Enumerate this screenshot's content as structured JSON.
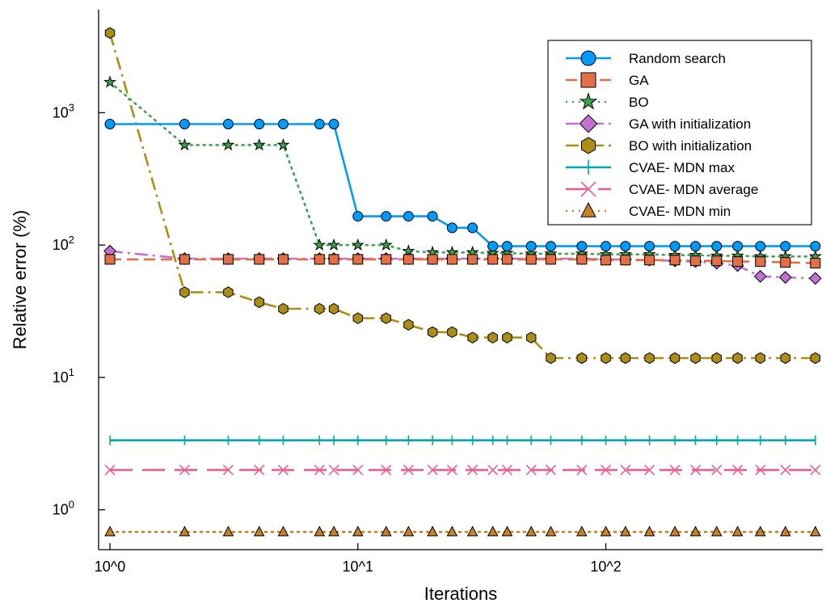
{
  "chart_data": {
    "type": "line",
    "title": "",
    "xlabel": "Iterations",
    "ylabel": "Relative error (%)",
    "xscale": "log",
    "yscale": "log",
    "xlim": [
      0.9,
      750
    ],
    "ylim": [
      0.5,
      6000
    ],
    "x_ticks": [
      {
        "value": 1,
        "label": "10^0"
      },
      {
        "value": 10,
        "label": "10^1"
      },
      {
        "value": 100,
        "label": "10^2"
      }
    ],
    "y_ticks": [
      {
        "value": 1,
        "base": "10",
        "exp": "0"
      },
      {
        "value": 10,
        "base": "10",
        "exp": "1"
      },
      {
        "value": 100,
        "base": "10",
        "exp": "2"
      },
      {
        "value": 1000,
        "base": "10",
        "exp": "3"
      }
    ],
    "grid": false,
    "legend_position": "top-right",
    "x": [
      1,
      2,
      3,
      4,
      5,
      7,
      8,
      10,
      13,
      16,
      20,
      24,
      29,
      35,
      40,
      50,
      60,
      80,
      100,
      120,
      150,
      190,
      230,
      280,
      340,
      420,
      530,
      700
    ],
    "series": [
      {
        "name": "Random search",
        "color": "#009AFA",
        "marker": "circle",
        "dash": "solid",
        "values": [
          820,
          820,
          820,
          820,
          820,
          820,
          820,
          165,
          165,
          165,
          165,
          135,
          135,
          98,
          98,
          98,
          98,
          98,
          98,
          98,
          98,
          98,
          98,
          98,
          98,
          98,
          98,
          98
        ]
      },
      {
        "name": "GA",
        "color": "#E26F46",
        "marker": "square",
        "dash": "dash",
        "values": [
          78,
          78,
          78,
          78,
          78,
          78,
          78,
          78,
          78,
          78,
          78,
          78,
          78,
          78,
          78,
          78,
          78,
          78,
          77,
          77,
          77,
          77,
          76,
          76,
          75,
          75,
          74,
          73
        ]
      },
      {
        "name": "BO",
        "color": "#3DA44D",
        "marker": "star",
        "dash": "dot",
        "values": [
          1700,
          570,
          570,
          570,
          570,
          100,
          100,
          100,
          100,
          90,
          88,
          88,
          88,
          87,
          87,
          86,
          86,
          86,
          85,
          85,
          85,
          84,
          84,
          83,
          83,
          82,
          82,
          82
        ]
      },
      {
        "name": "GA with initialization",
        "color": "#C271D2",
        "marker": "diamond",
        "dash": "dashdot",
        "values": [
          90,
          79,
          79,
          79,
          79,
          79,
          79,
          79,
          79,
          79,
          79,
          79,
          79,
          79,
          79,
          79,
          79,
          79,
          78,
          78,
          77,
          76,
          75,
          73,
          70,
          58,
          57,
          56
        ]
      },
      {
        "name": "BO with initialization",
        "color": "#AC8D18",
        "marker": "hexagon",
        "dash": "dashdot",
        "values": [
          4000,
          44,
          44,
          37,
          33,
          33,
          33,
          28,
          28,
          25,
          22,
          22,
          20,
          20,
          20,
          20,
          14,
          14,
          14,
          14,
          14,
          14,
          14,
          14,
          14,
          14,
          14,
          14
        ]
      },
      {
        "name": "CVAE- MDN max",
        "color": "#00A9AD",
        "marker": "vline",
        "dash": "solid",
        "values": [
          3.35,
          3.35,
          3.35,
          3.35,
          3.35,
          3.35,
          3.35,
          3.35,
          3.35,
          3.35,
          3.35,
          3.35,
          3.35,
          3.35,
          3.35,
          3.35,
          3.35,
          3.35,
          3.35,
          3.35,
          3.35,
          3.35,
          3.35,
          3.35,
          3.35,
          3.35,
          3.35,
          3.35
        ]
      },
      {
        "name": "CVAE- MDN average",
        "color": "#ED5D92",
        "marker": "x",
        "dash": "longdash",
        "values": [
          2.0,
          2.0,
          2.0,
          2.0,
          2.0,
          2.0,
          2.0,
          2.0,
          2.0,
          2.0,
          2.0,
          2.0,
          2.0,
          2.0,
          2.0,
          2.0,
          2.0,
          2.0,
          2.0,
          2.0,
          2.0,
          2.0,
          2.0,
          2.0,
          2.0,
          2.0,
          2.0,
          2.0
        ]
      },
      {
        "name": "CVAE- MDN min",
        "color": "#C68125",
        "marker": "triangle",
        "dash": "dot",
        "values": [
          0.68,
          0.68,
          0.68,
          0.68,
          0.68,
          0.68,
          0.68,
          0.68,
          0.68,
          0.68,
          0.68,
          0.68,
          0.68,
          0.68,
          0.68,
          0.68,
          0.68,
          0.68,
          0.68,
          0.68,
          0.68,
          0.68,
          0.68,
          0.68,
          0.68,
          0.68,
          0.68,
          0.68
        ]
      }
    ]
  }
}
